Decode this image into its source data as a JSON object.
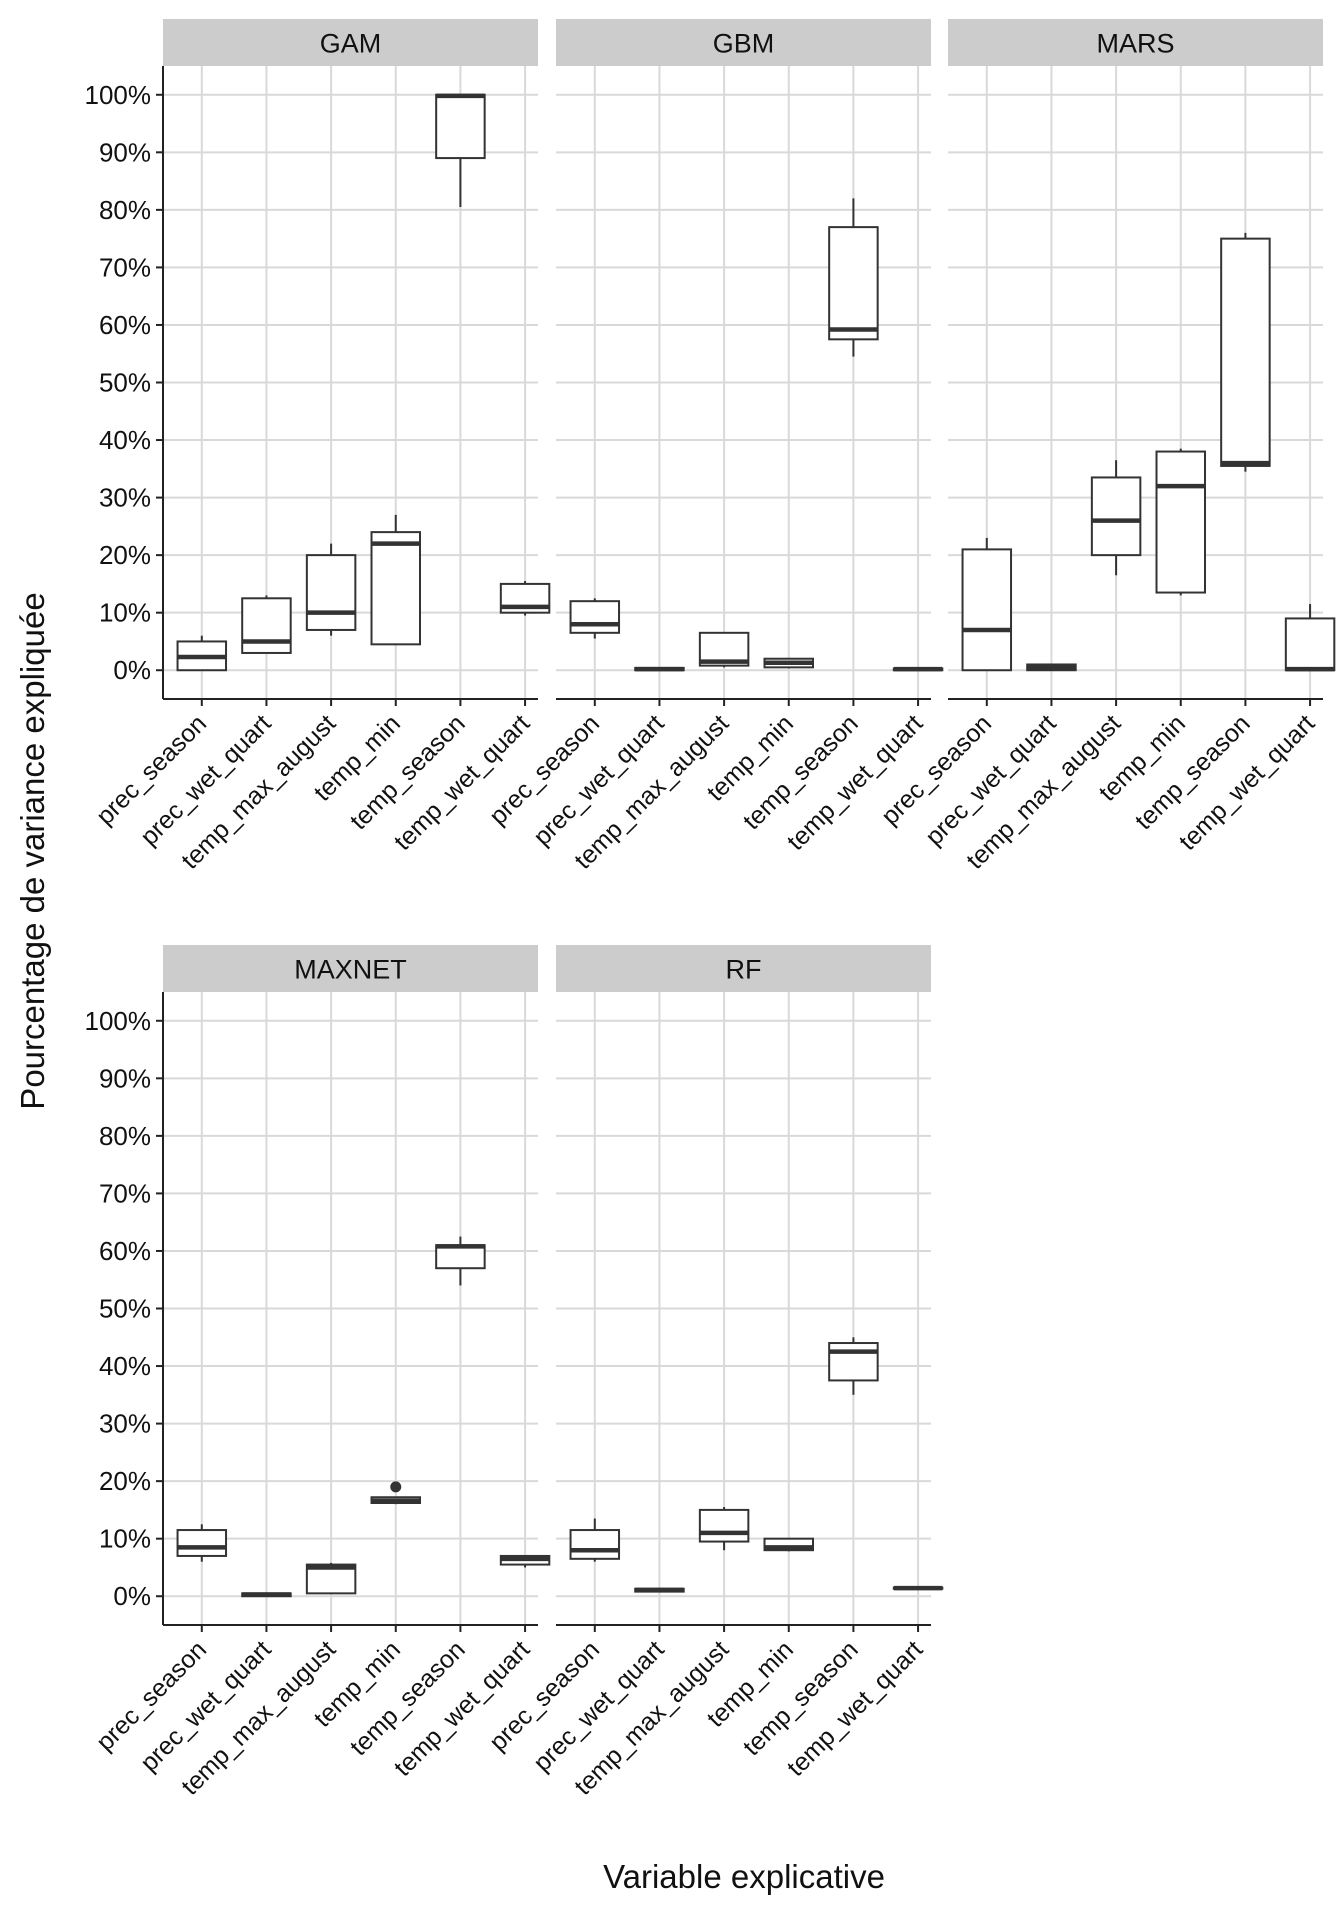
{
  "chart_data": {
    "type": "boxplot",
    "layout": "faceted",
    "xlabel": "Variable explicative",
    "ylabel": "Pourcentage de variance expliquée",
    "ylim": [
      -5,
      105
    ],
    "yticks": [
      0,
      10,
      20,
      30,
      40,
      50,
      60,
      70,
      80,
      90,
      100
    ],
    "ytick_labels": [
      "0%",
      "10%",
      "20%",
      "30%",
      "40%",
      "50%",
      "60%",
      "70%",
      "80%",
      "90%",
      "100%"
    ],
    "categories": [
      "prec_season",
      "prec_wet_quart",
      "temp_max_august",
      "temp_min",
      "temp_season",
      "temp_wet_quart"
    ],
    "grid": true,
    "panels": [
      {
        "name": "GAM",
        "boxes": [
          {
            "variable": "prec_season",
            "min": 0,
            "q1": 0,
            "median": 2.3,
            "q3": 5,
            "max": 6
          },
          {
            "variable": "prec_wet_quart",
            "min": 3,
            "q1": 3,
            "median": 5,
            "q3": 12.5,
            "max": 13
          },
          {
            "variable": "temp_max_august",
            "min": 6,
            "q1": 7,
            "median": 10,
            "q3": 20,
            "max": 22
          },
          {
            "variable": "temp_min",
            "min": 4.5,
            "q1": 4.5,
            "median": 22,
            "q3": 24,
            "max": 27
          },
          {
            "variable": "temp_season",
            "min": 80.5,
            "q1": 89,
            "median": 99.8,
            "q3": 100,
            "max": 100
          },
          {
            "variable": "temp_wet_quart",
            "min": 9.5,
            "q1": 10,
            "median": 11,
            "q3": 15,
            "max": 15.5
          }
        ],
        "outliers": []
      },
      {
        "name": "GBM",
        "boxes": [
          {
            "variable": "prec_season",
            "min": 5.5,
            "q1": 6.5,
            "median": 8,
            "q3": 12,
            "max": 12.5
          },
          {
            "variable": "prec_wet_quart",
            "min": 0,
            "q1": 0,
            "median": 0.2,
            "q3": 0.4,
            "max": 0.5
          },
          {
            "variable": "temp_max_august",
            "min": 0.5,
            "q1": 0.8,
            "median": 1.5,
            "q3": 6.5,
            "max": 6.5
          },
          {
            "variable": "temp_min",
            "min": 0.3,
            "q1": 0.5,
            "median": 1.3,
            "q3": 2,
            "max": 2
          },
          {
            "variable": "temp_season",
            "min": 54.5,
            "q1": 57.5,
            "median": 59.2,
            "q3": 77,
            "max": 82
          },
          {
            "variable": "temp_wet_quart",
            "min": 0,
            "q1": 0,
            "median": 0.2,
            "q3": 0.3,
            "max": 0.4
          }
        ],
        "outliers": []
      },
      {
        "name": "MARS",
        "boxes": [
          {
            "variable": "prec_season",
            "min": 0,
            "q1": 0,
            "median": 7,
            "q3": 21,
            "max": 23
          },
          {
            "variable": "prec_wet_quart",
            "min": 0,
            "q1": 0,
            "median": 0.5,
            "q3": 1,
            "max": 1
          },
          {
            "variable": "temp_max_august",
            "min": 16.5,
            "q1": 20,
            "median": 26,
            "q3": 33.5,
            "max": 36.5
          },
          {
            "variable": "temp_min",
            "min": 13,
            "q1": 13.5,
            "median": 32,
            "q3": 38,
            "max": 38.5
          },
          {
            "variable": "temp_season",
            "min": 34.5,
            "q1": 35.5,
            "median": 36,
            "q3": 75,
            "max": 76
          },
          {
            "variable": "temp_wet_quart",
            "min": 0,
            "q1": 0,
            "median": 0.2,
            "q3": 9,
            "max": 11.5
          }
        ],
        "outliers": []
      },
      {
        "name": "MAXNET",
        "boxes": [
          {
            "variable": "prec_season",
            "min": 6,
            "q1": 7,
            "median": 8.5,
            "q3": 11.5,
            "max": 12.5
          },
          {
            "variable": "prec_wet_quart",
            "min": 0,
            "q1": 0,
            "median": 0.3,
            "q3": 0.5,
            "max": 0.5
          },
          {
            "variable": "temp_max_august",
            "min": 0.5,
            "q1": 0.5,
            "median": 5,
            "q3": 5.5,
            "max": 5.8
          },
          {
            "variable": "temp_min",
            "min": 16,
            "q1": 16.2,
            "median": 16.6,
            "q3": 17.2,
            "max": 17.3
          },
          {
            "variable": "temp_season",
            "min": 54,
            "q1": 57,
            "median": 60.8,
            "q3": 61,
            "max": 62.5
          },
          {
            "variable": "temp_wet_quart",
            "min": 5,
            "q1": 5.5,
            "median": 6.5,
            "q3": 7,
            "max": 7
          }
        ],
        "outliers": [
          {
            "variable": "temp_min",
            "value": 19
          }
        ]
      },
      {
        "name": "RF",
        "boxes": [
          {
            "variable": "prec_season",
            "min": 6,
            "q1": 6.5,
            "median": 8,
            "q3": 11.5,
            "max": 13.5
          },
          {
            "variable": "prec_wet_quart",
            "min": 0.7,
            "q1": 0.8,
            "median": 1.1,
            "q3": 1.3,
            "max": 1.4
          },
          {
            "variable": "temp_max_august",
            "min": 8,
            "q1": 9.5,
            "median": 11,
            "q3": 15,
            "max": 15.5
          },
          {
            "variable": "temp_min",
            "min": 7.8,
            "q1": 8,
            "median": 8.5,
            "q3": 10,
            "max": 10
          },
          {
            "variable": "temp_season",
            "min": 35,
            "q1": 37.5,
            "median": 42.5,
            "q3": 44,
            "max": 45
          },
          {
            "variable": "temp_wet_quart",
            "min": 1.2,
            "q1": 1.3,
            "median": 1.4,
            "q3": 1.5,
            "max": 1.6
          }
        ],
        "outliers": []
      }
    ]
  }
}
